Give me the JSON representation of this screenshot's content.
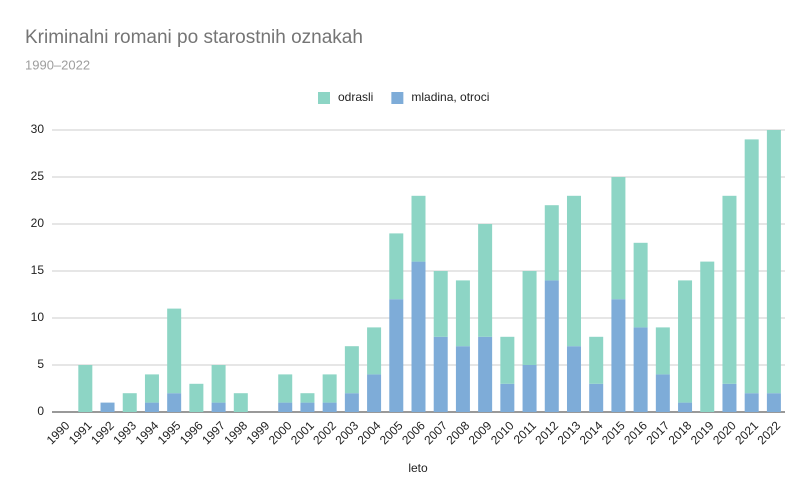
{
  "chart_data": {
    "type": "stacked_bar",
    "title": "Kriminalni romani po starostnih oznakah",
    "subtitle": "1990–2022",
    "x_label": "leto",
    "categories": [
      "1990",
      "1991",
      "1992",
      "1993",
      "1994",
      "1995",
      "1996",
      "1997",
      "1998",
      "1999",
      "2000",
      "2001",
      "2002",
      "2003",
      "2004",
      "2005",
      "2006",
      "2007",
      "2008",
      "2009",
      "2010",
      "2011",
      "2012",
      "2013",
      "2014",
      "2015",
      "2016",
      "2017",
      "2018",
      "2019",
      "2020",
      "2021",
      "2022"
    ],
    "series": [
      {
        "name": "mladina, otroci",
        "color": "#7eacd8",
        "values": [
          0,
          0,
          1,
          0,
          1,
          2,
          0,
          1,
          0,
          0,
          1,
          1,
          1,
          2,
          4,
          12,
          16,
          8,
          7,
          8,
          3,
          5,
          14,
          7,
          3,
          12,
          9,
          4,
          1,
          0,
          3,
          2,
          2
        ]
      },
      {
        "name": "odrasli",
        "color": "#8dd5c5",
        "values": [
          0,
          5,
          0,
          2,
          3,
          9,
          3,
          4,
          2,
          0,
          3,
          1,
          3,
          5,
          5,
          7,
          7,
          7,
          7,
          12,
          5,
          10,
          8,
          16,
          5,
          13,
          9,
          5,
          13,
          16,
          20,
          27,
          28
        ]
      }
    ],
    "ylim": [
      0,
      30
    ],
    "yticks": [
      0,
      5,
      10,
      15,
      20,
      25,
      30
    ],
    "grid": true
  }
}
